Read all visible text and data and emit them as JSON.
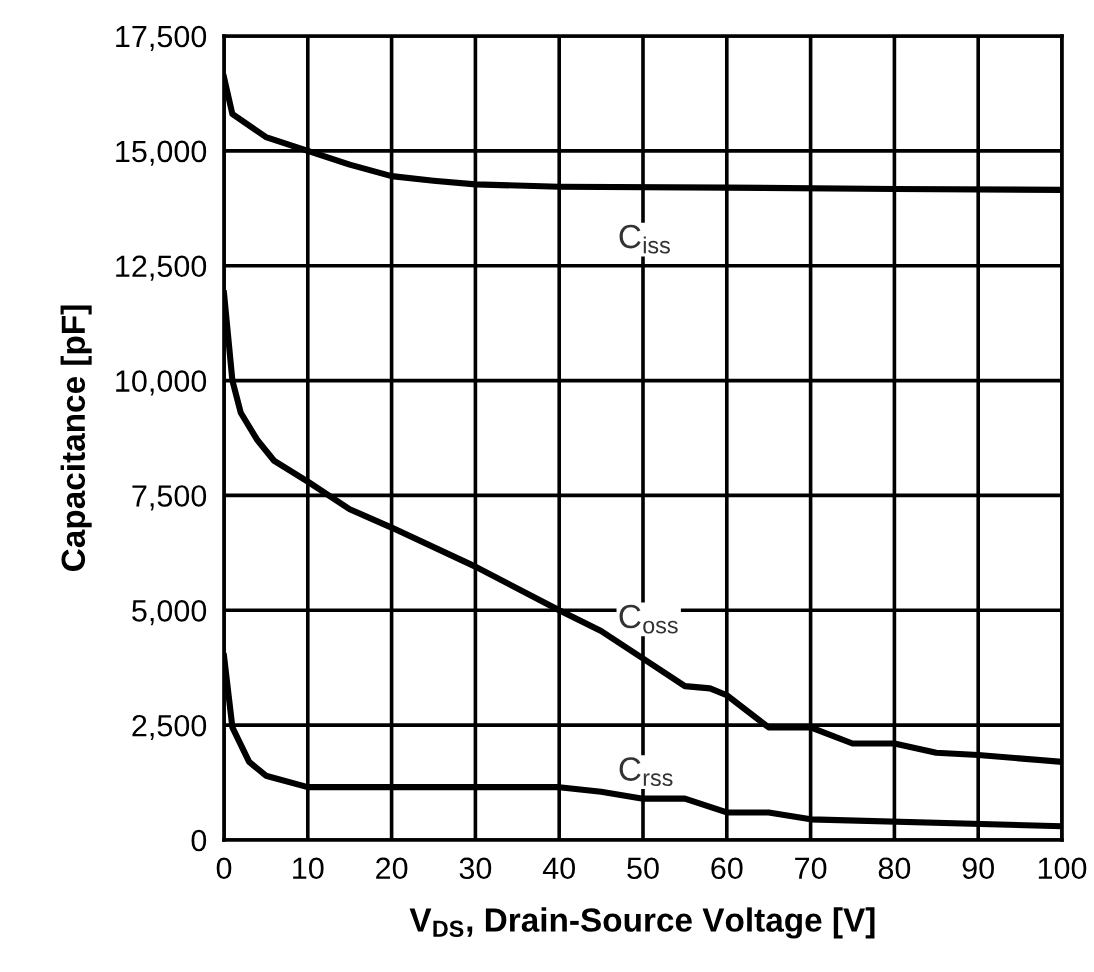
{
  "chart_data": {
    "type": "line",
    "xlabel": "V$_{DS}$, Drain-Source Voltage [V]",
    "ylabel": "Capacitance [pF]",
    "series": [
      {
        "name": "C$_{iss}$",
        "color": "#000000",
        "x": [
          0,
          1,
          5,
          10,
          15,
          20,
          25,
          30,
          40,
          60,
          80,
          100
        ],
        "values": [
          16600,
          15800,
          15300,
          15000,
          14700,
          14450,
          14350,
          14270,
          14220,
          14200,
          14170,
          14150
        ]
      },
      {
        "name": "C$_{oss}$",
        "color": "#000000",
        "x": [
          0,
          1,
          2,
          4,
          6,
          10,
          15,
          20,
          30,
          40,
          45,
          50,
          55,
          58,
          60,
          65,
          70,
          75,
          80,
          85,
          90,
          100
        ],
        "values": [
          11900,
          10000,
          9300,
          8700,
          8250,
          7800,
          7200,
          6800,
          5950,
          5000,
          4550,
          3950,
          3350,
          3300,
          3150,
          2450,
          2450,
          2100,
          2100,
          1900,
          1850,
          1700
        ]
      },
      {
        "name": "C$_{rss}$",
        "color": "#000000",
        "x": [
          0,
          1,
          3,
          5,
          10,
          40,
          45,
          50,
          55,
          60,
          65,
          70,
          100
        ],
        "values": [
          4000,
          2450,
          1700,
          1400,
          1150,
          1150,
          1050,
          900,
          900,
          600,
          600,
          450,
          300
        ]
      }
    ],
    "xlim": [
      0,
      100
    ],
    "ylim": [
      0,
      17500
    ],
    "xticks": [
      0,
      10,
      20,
      30,
      40,
      50,
      60,
      70,
      80,
      90,
      100
    ],
    "yticks": [
      {
        "value": 0,
        "label": "0"
      },
      {
        "value": 2500,
        "label": "2,500"
      },
      {
        "value": 5000,
        "label": "5,000"
      },
      {
        "value": 7500,
        "label": "7,500"
      },
      {
        "value": 10000,
        "label": "10,000"
      },
      {
        "value": 12500,
        "label": "12,500"
      },
      {
        "value": 15000,
        "label": "15,000"
      },
      {
        "value": 17500,
        "label": "17,500"
      }
    ],
    "grid": true,
    "line_style": "solid",
    "marker": "none",
    "legend": false
  }
}
